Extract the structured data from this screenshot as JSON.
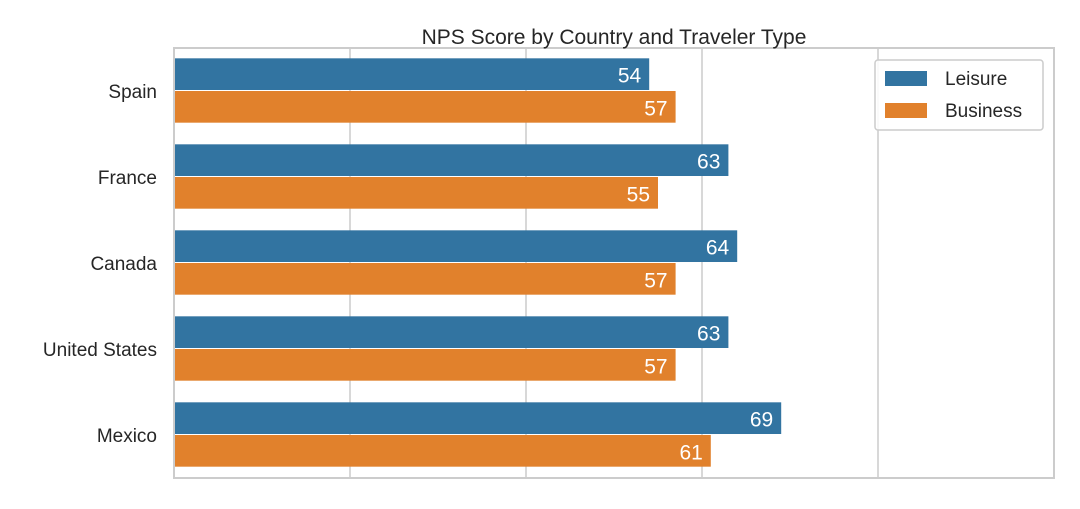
{
  "chart_data": {
    "type": "bar",
    "orientation": "horizontal",
    "title": "NPS Score by Country and Traveler Type",
    "xlabel": "",
    "ylabel": "",
    "categories": [
      "Spain",
      "France",
      "Canada",
      "United States",
      "Mexico"
    ],
    "series": [
      {
        "name": "Leisure",
        "color": "#3274a1",
        "values": [
          54,
          63,
          64,
          63,
          69
        ]
      },
      {
        "name": "Business",
        "color": "#e1812c",
        "values": [
          57,
          55,
          57,
          57,
          61
        ]
      }
    ],
    "xlim": [
      0,
      100
    ],
    "x_ticks": [
      0,
      20,
      40,
      60,
      80,
      100
    ],
    "x_tick_labels_visible": false,
    "grid": "vertical",
    "legend": "top-right",
    "data_labels": true
  }
}
